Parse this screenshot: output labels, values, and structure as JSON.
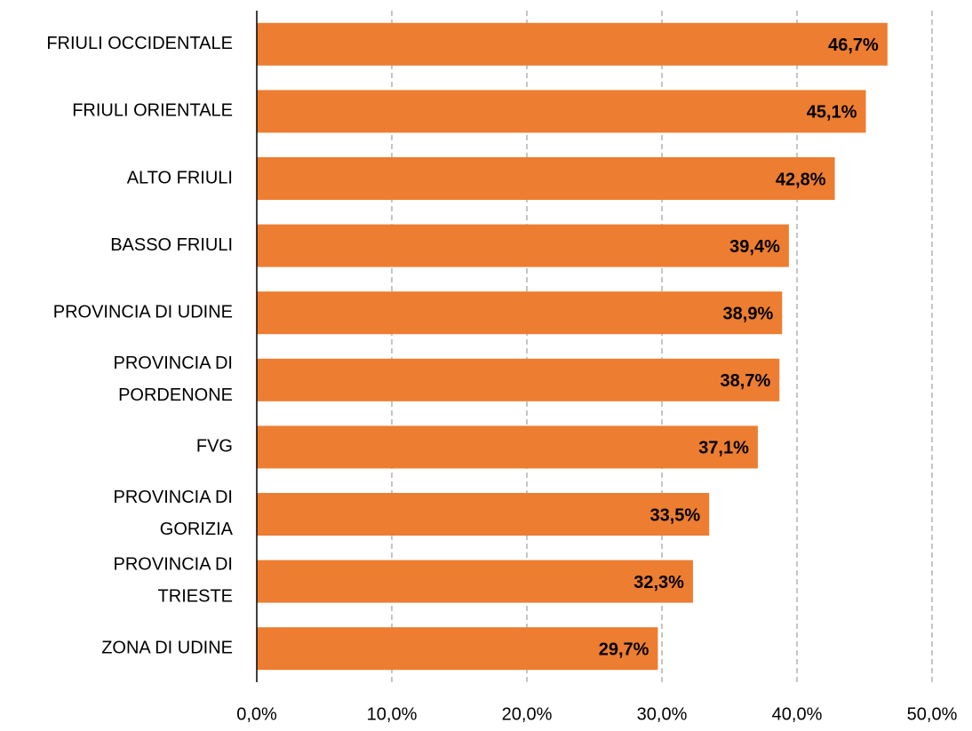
{
  "chart_data": {
    "type": "bar",
    "orientation": "horizontal",
    "categories": [
      "FRIULI OCCIDENTALE",
      "FRIULI ORIENTALE",
      "ALTO FRIULI",
      "BASSO FRIULI",
      "PROVINCIA DI UDINE",
      "PROVINCIA DI\nPORDENONE",
      "FVG",
      "PROVINCIA DI\nGORIZIA",
      "PROVINCIA DI\nTRIESTE",
      "ZONA DI UDINE"
    ],
    "values": [
      46.7,
      45.1,
      42.8,
      39.4,
      38.9,
      38.7,
      37.1,
      33.5,
      32.3,
      29.7
    ],
    "value_labels": [
      "46,7%",
      "45,1%",
      "42,8%",
      "39,4%",
      "38,9%",
      "38,7%",
      "37,1%",
      "33,5%",
      "32,3%",
      "29,7%"
    ],
    "color": "#ed7d31",
    "xlim": [
      0,
      50
    ],
    "xticks": [
      {
        "value": 0,
        "label": "0,0%"
      },
      {
        "value": 10,
        "label": "10,0%"
      },
      {
        "value": 20,
        "label": "20,0%"
      },
      {
        "value": 30,
        "label": "30,0%"
      },
      {
        "value": 40,
        "label": "40,0%"
      },
      {
        "value": 50,
        "label": "50,0%"
      }
    ],
    "grid": true
  }
}
